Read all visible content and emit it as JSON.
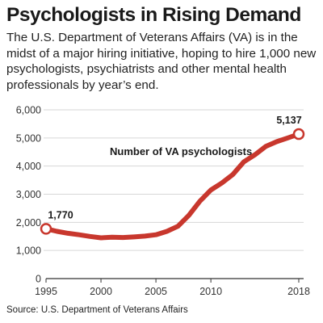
{
  "header": {
    "title": "Psychologists in Rising Demand",
    "subtitle": "The U.S. Department of Veterans Affairs (VA) is in the midst of a major hiring initiative, hoping to hire 1,000 new psychologists, psychiatrists and other mental health professionals by year’s end."
  },
  "source": "Source: U.S. Department of Veterans Affairs",
  "colors": {
    "line": "#c8372d",
    "grid": "#d6d6d6",
    "text": "#1a1a1a"
  },
  "chart_data": {
    "type": "line",
    "title": "",
    "xlabel": "",
    "ylabel": "",
    "xlim": [
      1995,
      2018
    ],
    "ylim": [
      0,
      6000
    ],
    "grid": true,
    "x_ticks": [
      "1995",
      "2000",
      "2005",
      "2010",
      "2018"
    ],
    "y_ticks": [
      "0",
      "1,000",
      "2,000",
      "3,000",
      "4,000",
      "5,000",
      "6,000"
    ],
    "series": [
      {
        "name": "Number of VA psychologists",
        "x": [
          1995,
          1996,
          1997,
          1998,
          1999,
          2000,
          2001,
          2002,
          2003,
          2004,
          2005,
          2006,
          2007,
          2008,
          2009,
          2010,
          2011,
          2012,
          2013,
          2014,
          2015,
          2016,
          2017,
          2018
        ],
        "values": [
          1770,
          1680,
          1610,
          1560,
          1500,
          1450,
          1470,
          1460,
          1480,
          1510,
          1560,
          1680,
          1860,
          2250,
          2750,
          3150,
          3400,
          3700,
          4150,
          4400,
          4700,
          4870,
          5000,
          5137
        ]
      }
    ],
    "annotations": [
      {
        "text": "1,770",
        "x": 1995,
        "y": 1770
      },
      {
        "text": "5,137",
        "x": 2018,
        "y": 5137
      }
    ]
  }
}
